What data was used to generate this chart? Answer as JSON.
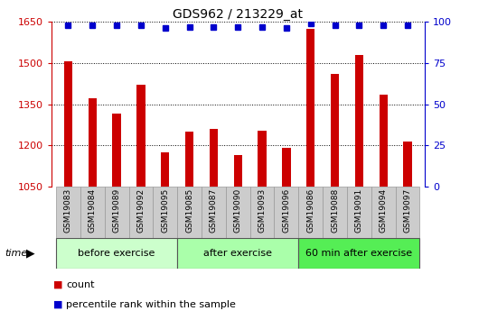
{
  "title": "GDS962 / 213229_at",
  "categories": [
    "GSM19083",
    "GSM19084",
    "GSM19089",
    "GSM19092",
    "GSM19095",
    "GSM19085",
    "GSM19087",
    "GSM19090",
    "GSM19093",
    "GSM19096",
    "GSM19086",
    "GSM19088",
    "GSM19091",
    "GSM19094",
    "GSM19097"
  ],
  "bar_values": [
    1505,
    1370,
    1315,
    1420,
    1175,
    1250,
    1260,
    1165,
    1255,
    1190,
    1625,
    1460,
    1530,
    1385,
    1215
  ],
  "percentile_values": [
    98,
    98,
    98,
    98,
    96,
    97,
    97,
    97,
    97,
    96,
    99,
    98,
    98,
    98,
    98
  ],
  "bar_color": "#cc0000",
  "percentile_color": "#0000cc",
  "baseline": 1050,
  "ylim_left": [
    1050,
    1650
  ],
  "ylim_right": [
    0,
    100
  ],
  "yticks_left": [
    1050,
    1200,
    1350,
    1500,
    1650
  ],
  "yticks_right": [
    0,
    25,
    50,
    75,
    100
  ],
  "groups": [
    {
      "label": "before exercise",
      "start": 0,
      "end": 5,
      "color": "#ccffcc"
    },
    {
      "label": "after exercise",
      "start": 5,
      "end": 10,
      "color": "#aaffaa"
    },
    {
      "label": "60 min after exercise",
      "start": 10,
      "end": 15,
      "color": "#55ee55"
    }
  ],
  "legend_count_label": "count",
  "legend_pct_label": "percentile rank within the sample",
  "time_label": "time",
  "left_axis_color": "#cc0000",
  "right_axis_color": "#0000cc",
  "tick_label_bg": "#cccccc",
  "bar_width": 0.35
}
